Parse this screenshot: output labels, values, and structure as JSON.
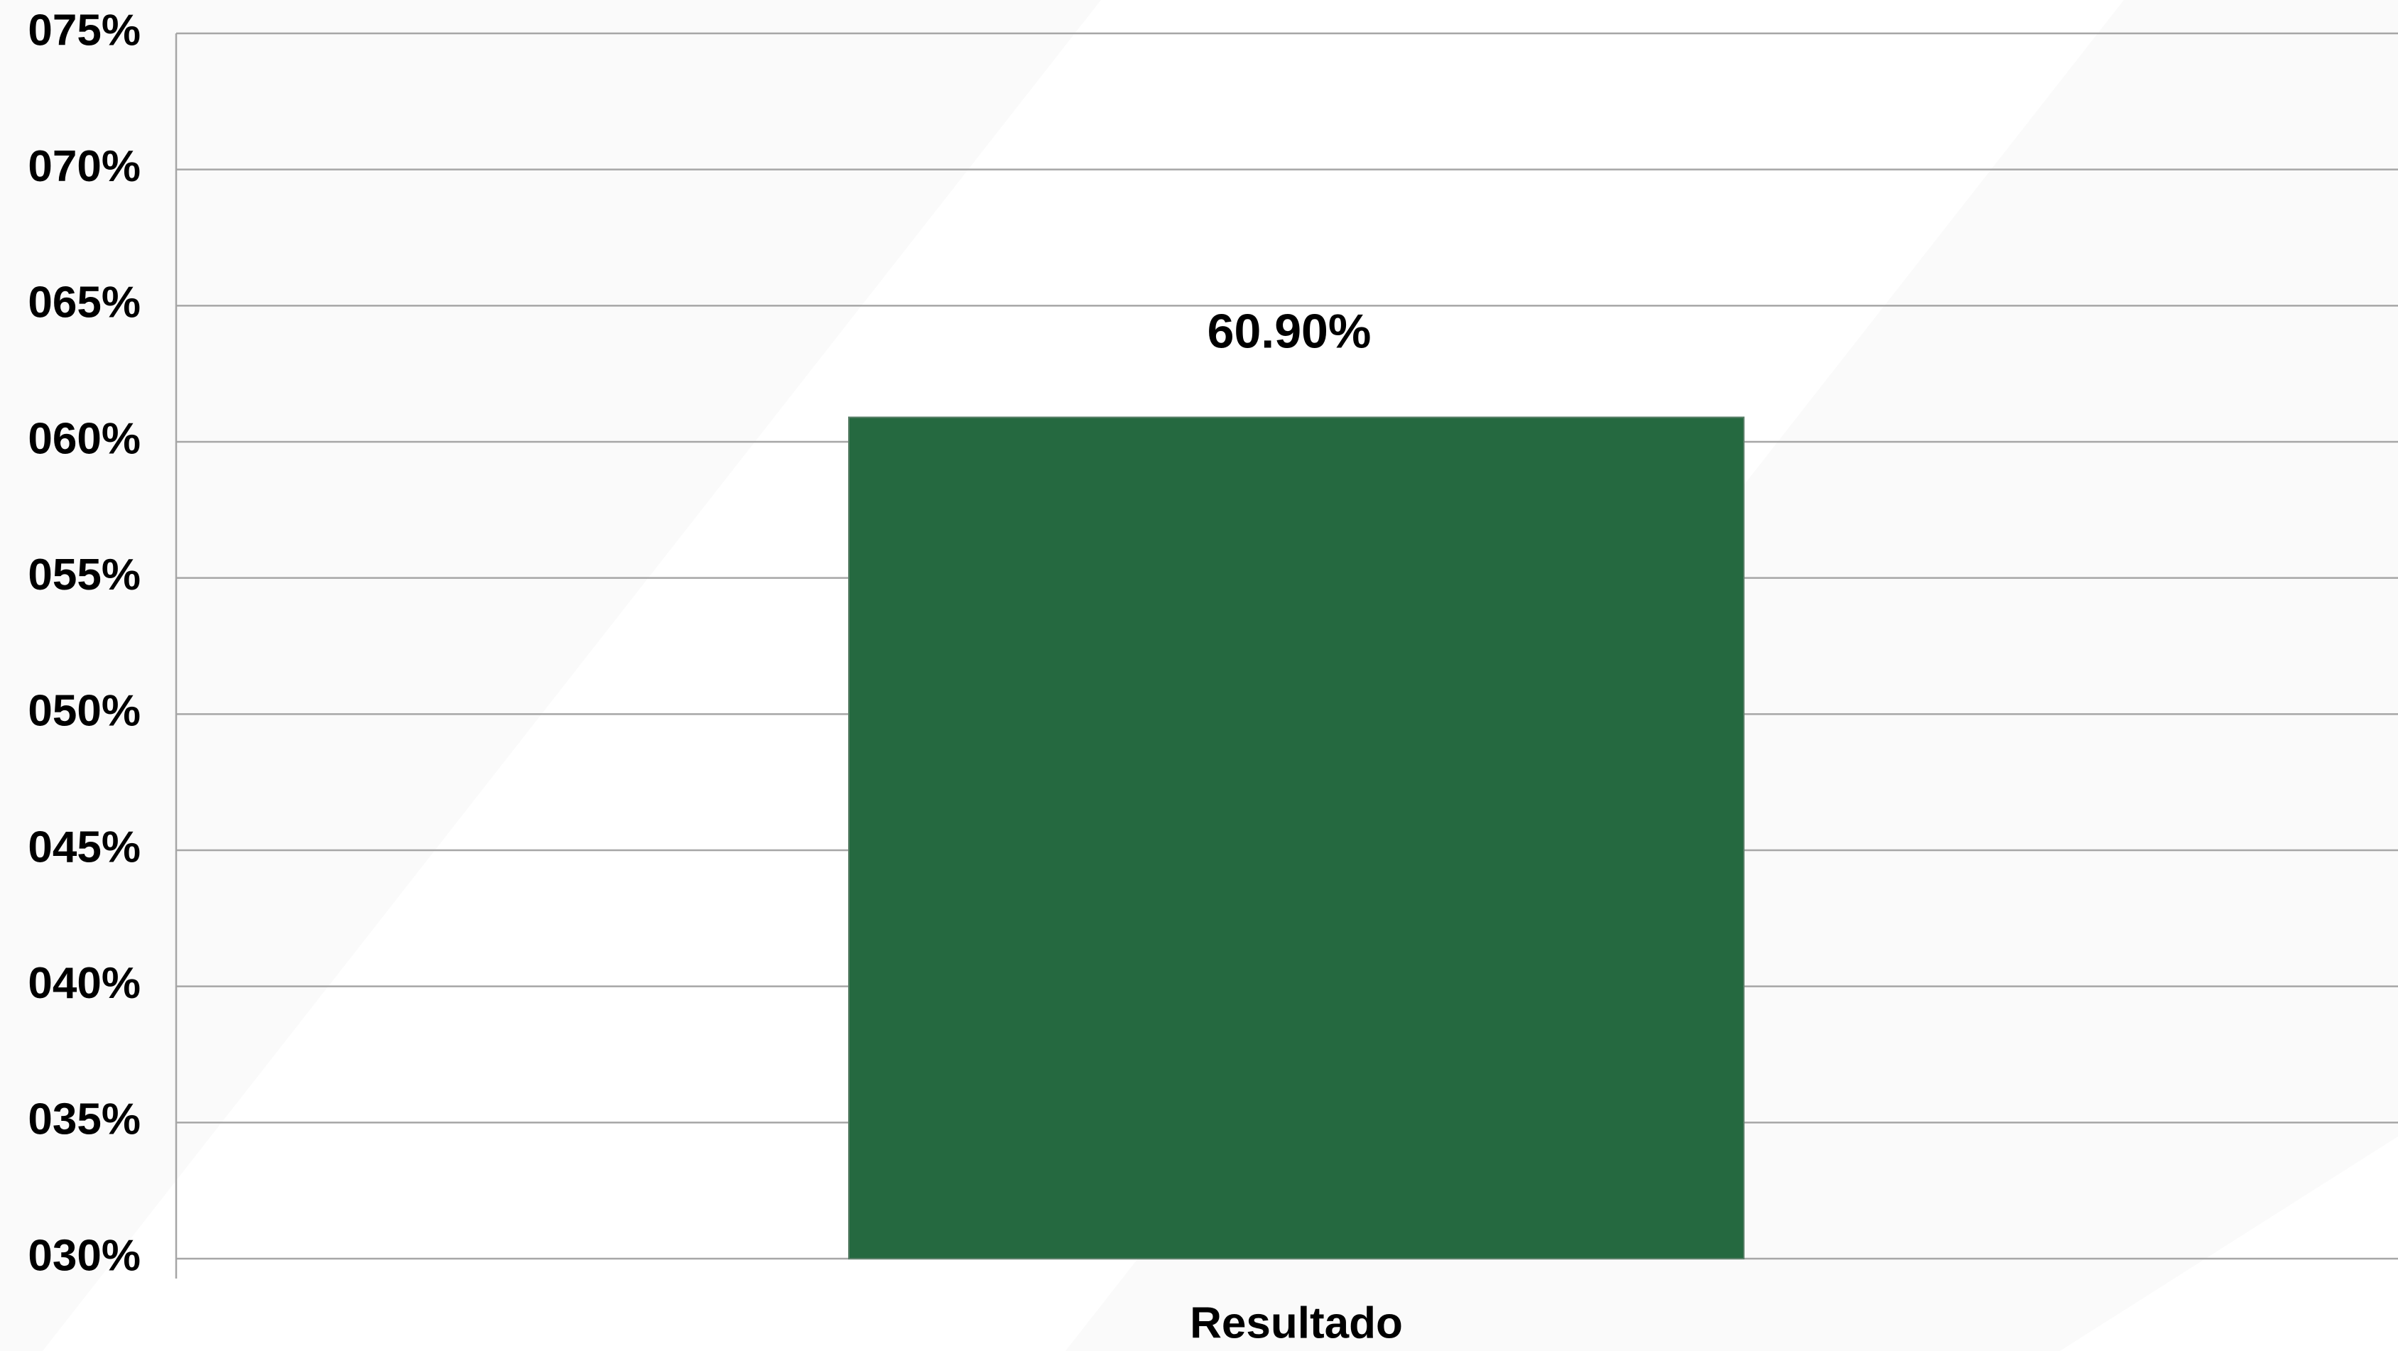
{
  "chart_data": {
    "type": "bar",
    "categories": [
      "Resultado"
    ],
    "values": [
      60.9
    ],
    "value_labels": [
      "60.90%"
    ],
    "color": "#256940",
    "ylim": [
      30,
      75
    ],
    "yticks": [
      {
        "value": 30,
        "label": "030%"
      },
      {
        "value": 35,
        "label": "035%"
      },
      {
        "value": 40,
        "label": "040%"
      },
      {
        "value": 45,
        "label": "045%"
      },
      {
        "value": 50,
        "label": "050%"
      },
      {
        "value": 55,
        "label": "055%"
      },
      {
        "value": 60,
        "label": "060%"
      },
      {
        "value": 65,
        "label": "065%"
      },
      {
        "value": 70,
        "label": "070%"
      },
      {
        "value": 75,
        "label": "075%"
      }
    ],
    "grid": true
  }
}
